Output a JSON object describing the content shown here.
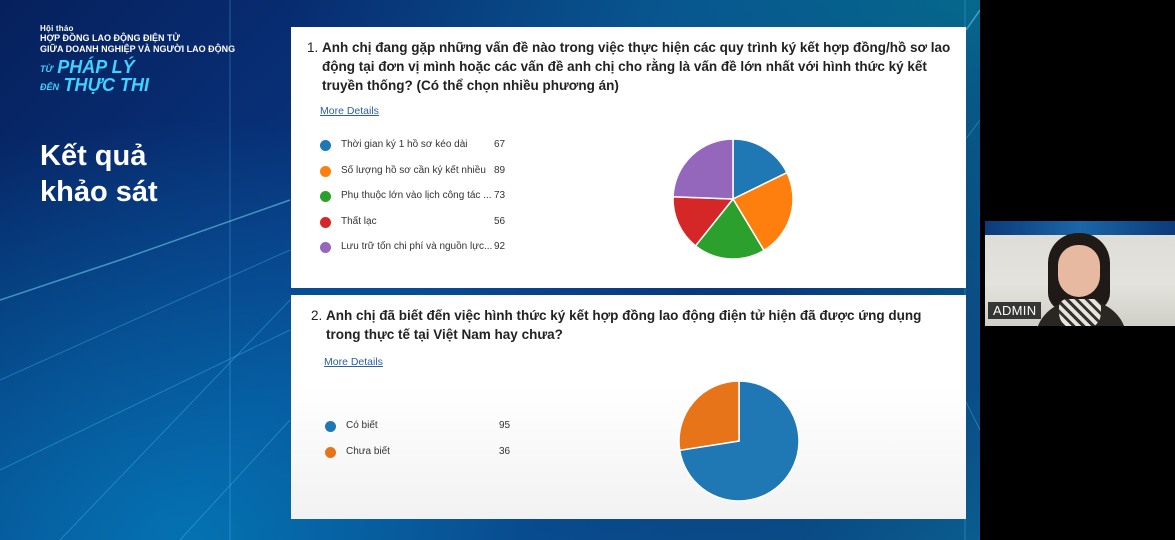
{
  "brand": {
    "event_label": "Hội thảo",
    "title_line1": "HỢP ĐỒNG LAO ĐỘNG ĐIỆN TỬ",
    "title_line2": "GIỮA DOANH NGHIỆP VÀ NGƯỜI LAO ĐỘNG",
    "slogan_from": "TỪ",
    "slogan_main1": "PHÁP LÝ",
    "slogan_to": "ĐẾN",
    "slogan_main2": "THỰC THI"
  },
  "heading": {
    "line1": "Kết quả",
    "line2": "khảo sát"
  },
  "questions": [
    {
      "number": "1.",
      "text": "Anh chị đang gặp những vấn đề nào trong việc thực hiện các quy trình ký kết hợp đồng/hồ sơ lao động tại đơn vị mình hoặc các vấn đề anh chị cho rằng là vấn đề lớn nhất với hình thức ký kết truyền thống? (Có thể chọn nhiều phương án)",
      "more_details": "More Details",
      "options": [
        {
          "label": "Thời gian ký 1 hồ sơ kéo dài",
          "count": "67",
          "color": "#1f77b4"
        },
        {
          "label": "Số lượng hồ sơ cần ký kết nhiều",
          "count": "89",
          "color": "#ff7f0e"
        },
        {
          "label": "Phụ thuộc lớn vào lịch công tác ...",
          "count": "73",
          "color": "#2ca02c"
        },
        {
          "label": "Thất lạc",
          "count": "56",
          "color": "#d62728"
        },
        {
          "label": "Lưu trữ tốn chi phí và nguồn lực...",
          "count": "92",
          "color": "#9467bd"
        }
      ]
    },
    {
      "number": "2.",
      "text": "Anh chị đã biết đến việc hình thức ký kết hợp đồng lao động điện tử hiện đã được ứng dụng trong thực tế tại Việt Nam hay chưa?",
      "more_details": "More Details",
      "options": [
        {
          "label": "Có biết",
          "count": "95",
          "color": "#1f77b4"
        },
        {
          "label": "Chưa biết",
          "count": "36",
          "color": "#e8741a"
        }
      ]
    }
  ],
  "chart_data": [
    {
      "type": "pie",
      "categories": [
        "Thời gian ký 1 hồ sơ kéo dài",
        "Số lượng hồ sơ cần ký kết nhiều",
        "Phụ thuộc lớn vào lịch công tác ...",
        "Thất lạc",
        "Lưu trữ tốn chi phí và nguồn lực..."
      ],
      "values": [
        67,
        89,
        73,
        56,
        92
      ],
      "colors": [
        "#1f77b4",
        "#ff7f0e",
        "#2ca02c",
        "#d62728",
        "#9467bd"
      ],
      "legend": "left"
    },
    {
      "type": "pie",
      "categories": [
        "Có biết",
        "Chưa biết"
      ],
      "values": [
        95,
        36
      ],
      "colors": [
        "#1f77b4",
        "#e8741a"
      ],
      "legend": "left"
    }
  ],
  "video": {
    "participant_name": "ADMIN"
  }
}
